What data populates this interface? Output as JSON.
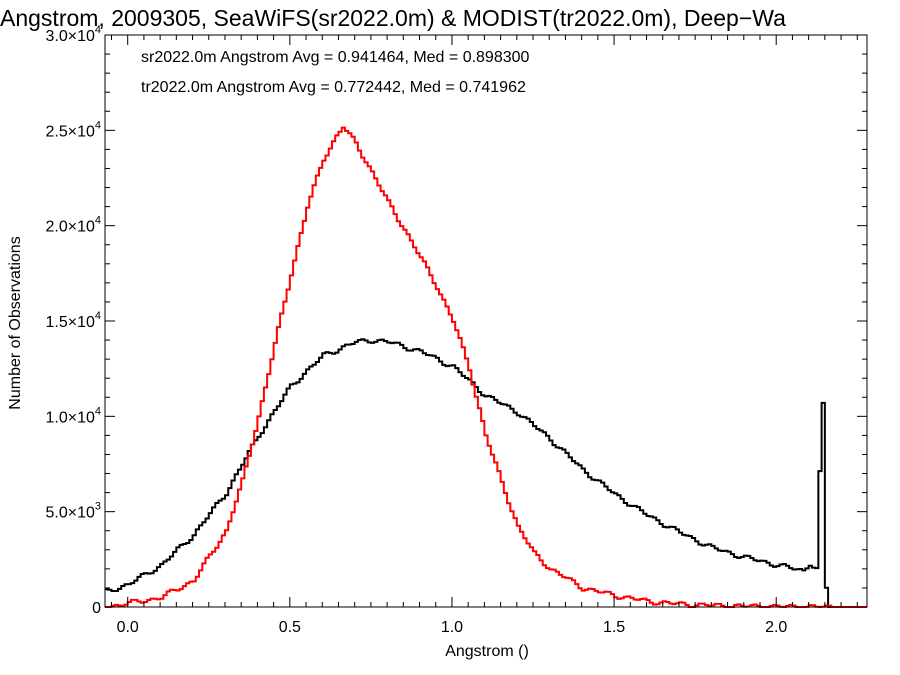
{
  "chart_data": {
    "type": "line",
    "title": "Angstrom, 2009305, SeaWiFS(sr2022.0m) & MODIST(tr2022.0m), Deep−Wa",
    "xlabel": "Angstrom ()",
    "ylabel": "Number of Observations",
    "xlim": [
      -0.07,
      2.28
    ],
    "ylim": [
      0,
      30000
    ],
    "x_ticks": [
      {
        "value": 0.0,
        "label": "0.0"
      },
      {
        "value": 0.5,
        "label": "0.5"
      },
      {
        "value": 1.0,
        "label": "1.0"
      },
      {
        "value": 1.5,
        "label": "1.5"
      },
      {
        "value": 2.0,
        "label": "2.0"
      }
    ],
    "y_ticks": [
      {
        "value": 0,
        "mant": "0",
        "exp": ""
      },
      {
        "value": 5000,
        "mant": "5.0×10",
        "exp": "3"
      },
      {
        "value": 10000,
        "mant": "1.0×10",
        "exp": "4"
      },
      {
        "value": 15000,
        "mant": "1.5×10",
        "exp": "4"
      },
      {
        "value": 20000,
        "mant": "2.0×10",
        "exp": "4"
      },
      {
        "value": 25000,
        "mant": "2.5×10",
        "exp": "4"
      },
      {
        "value": 30000,
        "mant": "3.0×10",
        "exp": "4"
      }
    ],
    "annotations": [
      {
        "text": "sr2022.0m Angstrom Avg = 0.941464, Med = 0.898300",
        "color": "#000000"
      },
      {
        "text": "tr2022.0m Angstrom Avg = 0.772442, Med = 0.741962",
        "color": "#ff0000"
      }
    ],
    "series": [
      {
        "color": "#000000",
        "x": [
          -0.07,
          0.0,
          0.1,
          0.2,
          0.3,
          0.35,
          0.4,
          0.5,
          0.6,
          0.7,
          0.75,
          0.8,
          0.9,
          1.0,
          1.1,
          1.2,
          1.3,
          1.4,
          1.5,
          1.6,
          1.7,
          1.8,
          1.9,
          2.0,
          2.08,
          2.1,
          2.12,
          2.135,
          2.14,
          2.15,
          2.155
        ],
        "y": [
          800,
          1200,
          2200,
          3800,
          6000,
          7500,
          9000,
          11600,
          13200,
          13900,
          14000,
          13900,
          13400,
          12600,
          11100,
          10200,
          8800,
          7200,
          5900,
          4800,
          3900,
          3100,
          2600,
          2200,
          1900,
          2300,
          2000,
          9500,
          10600,
          1000,
          0
        ]
      },
      {
        "color": "#ff0000",
        "x": [
          -0.07,
          0.0,
          0.1,
          0.2,
          0.3,
          0.35,
          0.4,
          0.45,
          0.5,
          0.55,
          0.6,
          0.64,
          0.66,
          0.7,
          0.75,
          0.8,
          0.85,
          0.9,
          0.95,
          1.0,
          1.05,
          1.1,
          1.15,
          1.2,
          1.25,
          1.3,
          1.4,
          1.5,
          1.6,
          1.7,
          1.8,
          1.9,
          2.0,
          2.1,
          2.16
        ],
        "y": [
          0,
          200,
          500,
          1400,
          4000,
          6600,
          10000,
          13800,
          17500,
          21000,
          23500,
          24700,
          25200,
          24300,
          22800,
          21200,
          19800,
          18300,
          16800,
          15000,
          12500,
          9000,
          6500,
          4200,
          2800,
          2000,
          1000,
          600,
          300,
          150,
          80,
          40,
          20,
          10,
          0
        ]
      }
    ]
  }
}
